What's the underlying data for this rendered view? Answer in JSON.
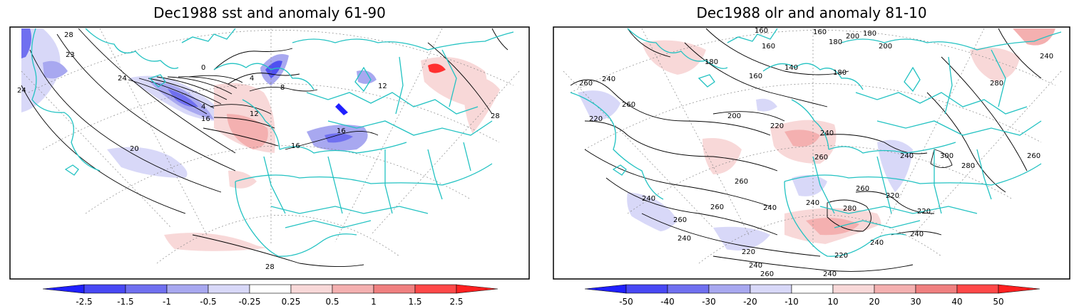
{
  "panels": [
    {
      "title": "Dec1988 sst and anomaly 61-90",
      "contour_labels": [
        "28",
        "23",
        "24",
        "24",
        "0",
        "4",
        "4",
        "8",
        "12",
        "16",
        "16",
        "20",
        "16",
        "28",
        "28",
        "12"
      ],
      "colorbar_ticks": [
        "-2.5",
        "-1.5",
        "-1",
        "-0.5",
        "-0.25",
        "0.25",
        "0.5",
        "1",
        "1.5",
        "2.5"
      ]
    },
    {
      "title": "Dec1988 olr and anomaly 81-10",
      "contour_labels": [
        "160",
        "160",
        "180",
        "200",
        "180",
        "180",
        "160",
        "140",
        "180",
        "160",
        "200",
        "240",
        "280",
        "260",
        "240",
        "260",
        "220",
        "200",
        "220",
        "240",
        "260",
        "240",
        "300",
        "260",
        "280",
        "260",
        "240",
        "260",
        "280",
        "240",
        "220",
        "220",
        "240",
        "260",
        "260",
        "220",
        "240",
        "240",
        "220",
        "260",
        "240",
        "240",
        "240"
      ],
      "colorbar_ticks": [
        "-50",
        "-40",
        "-30",
        "-20",
        "-10",
        "10",
        "20",
        "30",
        "40",
        "50"
      ]
    }
  ],
  "colors": {
    "coastline": "#22c2c2",
    "negative_strong": "#2020ff",
    "negative_mid": "#7070f0",
    "negative_light": "#a8a8f0",
    "negative_faint": "#d8d8f8",
    "positive_faint": "#f8d8d8",
    "positive_light": "#f4b0b0",
    "positive_mid": "#f08080",
    "positive_strong": "#ff3030"
  }
}
